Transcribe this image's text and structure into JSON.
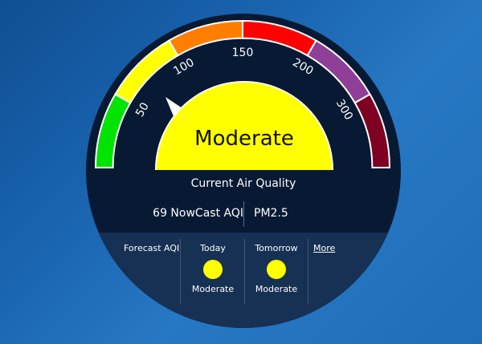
{
  "gauge": {
    "scale_labels": [
      "50",
      "100",
      "150",
      "200",
      "300"
    ],
    "segment_colors": [
      "#00e400",
      "#ffff00",
      "#ff7e00",
      "#ff0000",
      "#8f3f97",
      "#7e0023"
    ],
    "category": "Moderate",
    "category_color": "#ffff00",
    "needle_icon": "pointer-triangle-icon"
  },
  "current": {
    "title": "Current Air Quality",
    "aqi_text": "69 NowCast AQI",
    "pollutant": "PM2.5"
  },
  "forecast": {
    "label": "Forecast AQI",
    "days": [
      {
        "day": "Today",
        "category": "Moderate",
        "color": "#ffff00"
      },
      {
        "day": "Tomorrow",
        "category": "Moderate",
        "color": "#ffff00"
      }
    ],
    "more_label": "More"
  }
}
